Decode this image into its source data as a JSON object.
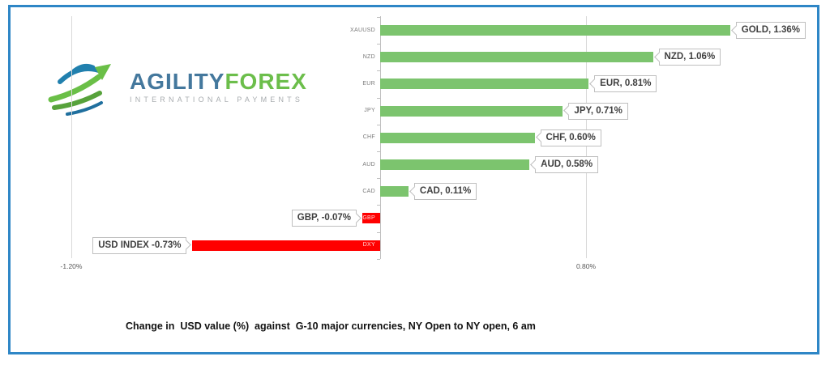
{
  "frame": {
    "border_color": "#2e86c6"
  },
  "logo": {
    "brand_part1": "AGILITY",
    "brand_part2": "FOREX",
    "tagline": "INTERNATIONAL PAYMENTS"
  },
  "chart_data": {
    "type": "bar",
    "orientation": "horizontal",
    "title": "Change in  USD value (%)  against  G-10 major currencies, NY Open to NY open, 6 am",
    "categories": [
      "XAUUSD",
      "NZD",
      "EUR",
      "JPY",
      "CHF",
      "AUD",
      "CAD",
      "GBP",
      "DXY"
    ],
    "values": [
      1.36,
      1.06,
      0.81,
      0.71,
      0.6,
      0.58,
      0.11,
      -0.07,
      -0.73
    ],
    "data_labels": [
      "GOLD, 1.36%",
      "NZD, 1.06%",
      "EUR, 0.81%",
      "JPY, 0.71%",
      "CHF, 0.60%",
      "AUD, 0.58%",
      "CAD, 0.11%",
      "GBP, -0.07%",
      "USD INDEX -0.73%"
    ],
    "x_axis": {
      "ticks": [
        {
          "label": "-1.20%",
          "value": -1.2
        },
        {
          "label": "0.80%",
          "value": 0.8
        }
      ]
    },
    "colors": {
      "positive": "#7cc46e",
      "negative": "#ff0000"
    },
    "grid": true,
    "legend": "none"
  }
}
